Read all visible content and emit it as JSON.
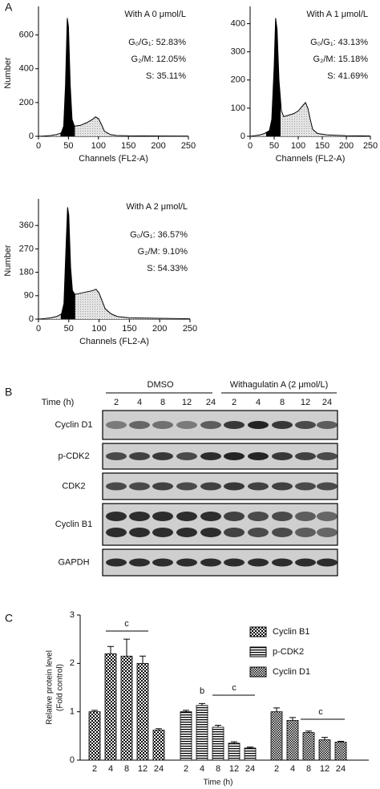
{
  "panel_labels": [
    "A",
    "B",
    "C"
  ],
  "chart_data": [
    {
      "type": "line",
      "ylabel": "Number",
      "xlabel": "Channels (FL2-A)",
      "annotations": [
        "With A 0 μmol/L",
        "G₀/G₁: 52.83%",
        "G₂/M: 12.05%",
        "S: 35.11%"
      ],
      "xlim": [
        0,
        250
      ],
      "xticks": [
        0,
        50,
        100,
        150,
        200,
        250
      ],
      "ylim": [
        0,
        750
      ],
      "yticks": [
        0,
        200,
        400,
        600
      ],
      "x": [
        0,
        10,
        20,
        30,
        38,
        42,
        45,
        48,
        50,
        53,
        56,
        60,
        70,
        80,
        90,
        95,
        100,
        105,
        110,
        120,
        130,
        150,
        200,
        250
      ],
      "values": [
        0,
        2,
        5,
        10,
        20,
        60,
        300,
        700,
        650,
        300,
        100,
        60,
        65,
        80,
        100,
        115,
        105,
        70,
        30,
        10,
        5,
        3,
        2,
        1
      ],
      "color": "#000"
    },
    {
      "type": "line",
      "xlabel": "Channels (FL2-A)",
      "annotations": [
        "With A 1 μmol/L",
        "G₀/G₁: 43.13%",
        "G₂/M: 15.18%",
        "S: 41.69%"
      ],
      "xlim": [
        0,
        250
      ],
      "xticks": [
        0,
        50,
        100,
        150,
        200,
        250
      ],
      "ylim": [
        0,
        450
      ],
      "yticks": [
        0,
        100,
        200,
        300,
        400
      ],
      "x": [
        0,
        10,
        20,
        30,
        40,
        45,
        50,
        53,
        56,
        60,
        65,
        70,
        80,
        90,
        100,
        110,
        115,
        120,
        125,
        130,
        140,
        160,
        200,
        250
      ],
      "values": [
        0,
        2,
        5,
        10,
        20,
        60,
        250,
        420,
        380,
        200,
        90,
        70,
        75,
        80,
        90,
        110,
        120,
        100,
        60,
        25,
        10,
        5,
        2,
        1
      ],
      "color": "#000"
    },
    {
      "type": "line",
      "ylabel": "Number",
      "xlabel": "Channels (FL2-A)",
      "annotations": [
        "With A 2 μmol/L",
        "G₀/G₁: 36.57%",
        "G₂/M: 9.10%",
        "S: 54.33%"
      ],
      "xlim": [
        0,
        250
      ],
      "xticks": [
        0,
        50,
        100,
        150,
        200,
        250
      ],
      "ylim": [
        0,
        450
      ],
      "yticks": [
        0,
        90,
        180,
        270,
        360
      ],
      "x": [
        0,
        10,
        20,
        30,
        38,
        42,
        45,
        48,
        50,
        53,
        56,
        60,
        70,
        80,
        90,
        95,
        100,
        105,
        110,
        120,
        130,
        150,
        200,
        250
      ],
      "values": [
        0,
        2,
        5,
        10,
        20,
        60,
        250,
        430,
        400,
        200,
        110,
        95,
        100,
        105,
        110,
        115,
        100,
        70,
        40,
        20,
        10,
        5,
        3,
        1
      ],
      "color": "#000"
    },
    {
      "type": "bar",
      "ylabel": [
        "Relative protein level",
        "(Fold control)"
      ],
      "xlabel": "Time (h)",
      "categories": [
        "2",
        "4",
        "8",
        "12",
        "24"
      ],
      "ylim": [
        0,
        3
      ],
      "yticks": [
        0,
        1,
        2,
        3
      ],
      "annotations": [
        "c",
        "b",
        "c",
        "c"
      ],
      "series": [
        {
          "name": "Cyclin B1",
          "color": "#000",
          "values": [
            1.0,
            2.2,
            2.15,
            2.0,
            0.62
          ],
          "errors": [
            0.03,
            0.15,
            0.35,
            0.15,
            0.03
          ]
        },
        {
          "name": "p-CDK2",
          "color": "#000",
          "values": [
            1.0,
            1.13,
            0.68,
            0.35,
            0.25
          ],
          "errors": [
            0.03,
            0.04,
            0.04,
            0.03,
            0.02
          ]
        },
        {
          "name": "Cyclin D1",
          "color": "#000",
          "values": [
            1.0,
            0.82,
            0.57,
            0.42,
            0.37
          ],
          "errors": [
            0.08,
            0.06,
            0.03,
            0.05,
            0.02
          ]
        }
      ]
    }
  ],
  "western_blot": {
    "groups": [
      "DMSO",
      "Withagulatin A (2 μmol/L)"
    ],
    "time_label": "Time (h)",
    "times": [
      "2",
      "4",
      "8",
      "12",
      "24",
      "2",
      "4",
      "8",
      "12",
      "24"
    ],
    "rows": [
      "Cyclin D1",
      "p-CDK2",
      "CDK2",
      "Cyclin B1",
      "GAPDH"
    ]
  }
}
